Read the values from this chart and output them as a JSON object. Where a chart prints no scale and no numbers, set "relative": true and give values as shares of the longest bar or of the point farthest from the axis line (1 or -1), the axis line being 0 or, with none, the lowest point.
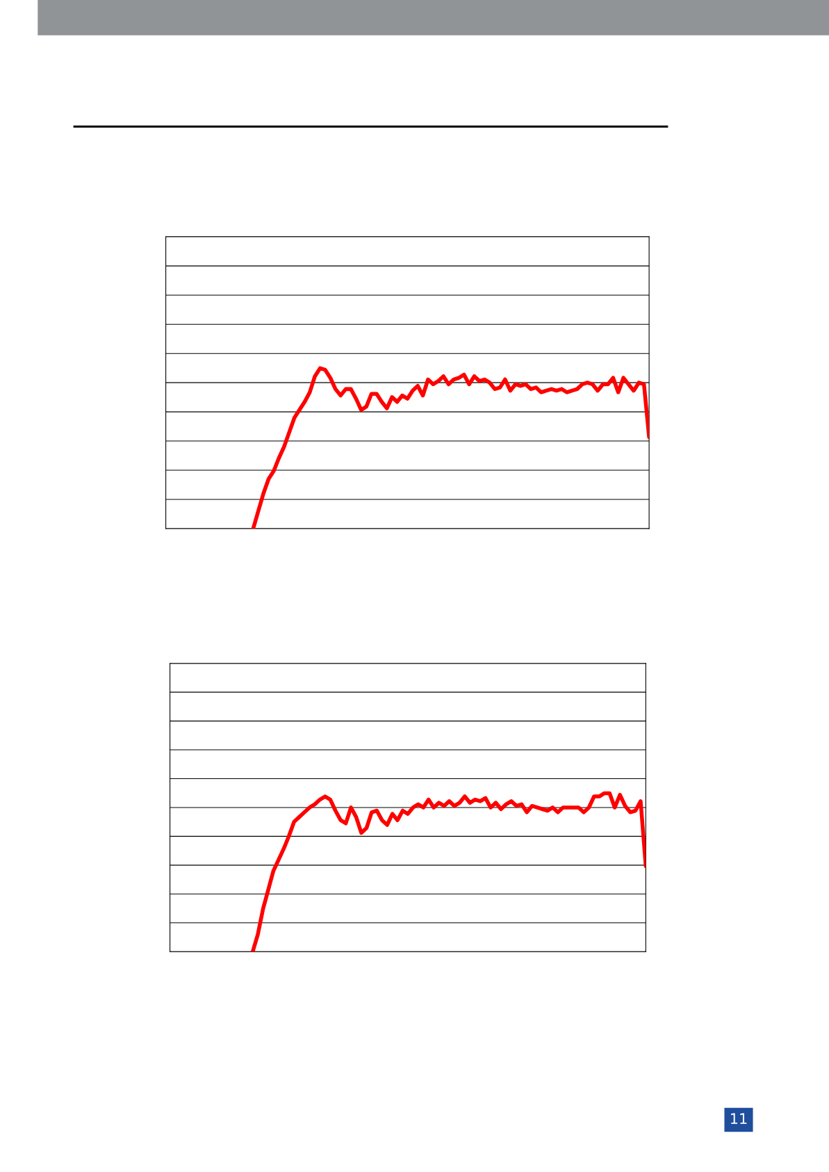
{
  "chart_data": [
    {
      "type": "line",
      "relative": true,
      "grid": "y",
      "color": "#ff0000",
      "categories": [
        null,
        null,
        null,
        null,
        null,
        null,
        null,
        null,
        null,
        null,
        null,
        null,
        null,
        null,
        null,
        null,
        null,
        null,
        null,
        null,
        null,
        null,
        null,
        null,
        null,
        null,
        null,
        null,
        null,
        null,
        null,
        null,
        null,
        null,
        null,
        null,
        null,
        null,
        null,
        null,
        null,
        null,
        null,
        null,
        null,
        null,
        null,
        null,
        null,
        null,
        null,
        null,
        null,
        null,
        null,
        null,
        null,
        null,
        null,
        null,
        null,
        null,
        null,
        null,
        null,
        null,
        null,
        null,
        null,
        null,
        null,
        null,
        null,
        null,
        null,
        null,
        null,
        null,
        null,
        null,
        null,
        null,
        null,
        null,
        null,
        null,
        null,
        null,
        null,
        null,
        null,
        null,
        null,
        null,
        null
      ],
      "values": [
        null,
        null,
        null,
        null,
        null,
        null,
        null,
        null,
        null,
        null,
        null,
        null,
        null,
        null,
        null,
        null,
        null,
        0,
        0.11,
        0.22,
        0.31,
        0.36,
        0.44,
        0.51,
        0.6,
        0.69,
        0.74,
        0.79,
        0.85,
        0.95,
        1,
        0.99,
        0.94,
        0.87,
        0.83,
        0.87,
        0.87,
        0.81,
        0.74,
        0.76,
        0.84,
        0.84,
        0.79,
        0.75,
        0.82,
        0.79,
        0.83,
        0.81,
        0.86,
        0.89,
        0.83,
        0.93,
        0.9,
        0.92,
        0.95,
        0.9,
        0.93,
        0.94,
        0.96,
        0.9,
        0.95,
        0.92,
        0.93,
        0.91,
        0.87,
        0.88,
        0.93,
        0.86,
        0.9,
        0.89,
        0.9,
        0.87,
        0.88,
        0.85,
        0.86,
        0.87,
        0.86,
        0.87,
        0.85,
        0.86,
        0.87,
        0.9,
        0.91,
        0.9,
        0.86,
        0.9,
        0.9,
        0.94,
        0.85,
        0.94,
        0.9,
        0.86,
        0.91,
        0.9,
        0.57
      ]
    },
    {
      "type": "line",
      "relative": true,
      "grid": "y",
      "color": "#ff0000",
      "categories": [
        null,
        null,
        null,
        null,
        null,
        null,
        null,
        null,
        null,
        null,
        null,
        null,
        null,
        null,
        null,
        null,
        null,
        null,
        null,
        null,
        null,
        null,
        null,
        null,
        null,
        null,
        null,
        null,
        null,
        null,
        null,
        null,
        null,
        null,
        null,
        null,
        null,
        null,
        null,
        null,
        null,
        null,
        null,
        null,
        null,
        null,
        null,
        null,
        null,
        null,
        null,
        null,
        null,
        null,
        null,
        null,
        null,
        null,
        null,
        null,
        null,
        null,
        null,
        null,
        null,
        null,
        null,
        null,
        null,
        null,
        null,
        null,
        null,
        null,
        null,
        null,
        null,
        null,
        null,
        null,
        null,
        null,
        null,
        null,
        null,
        null,
        null,
        null,
        null,
        null,
        null,
        null,
        null
      ],
      "values": [
        null,
        null,
        null,
        null,
        null,
        null,
        null,
        null,
        null,
        null,
        null,
        null,
        null,
        null,
        null,
        null,
        0,
        0.11,
        0.27,
        0.39,
        0.51,
        0.58,
        0.65,
        0.73,
        0.82,
        0.85,
        0.88,
        0.91,
        0.93,
        0.96,
        0.98,
        0.96,
        0.89,
        0.83,
        0.81,
        0.91,
        0.85,
        0.75,
        0.78,
        0.88,
        0.89,
        0.83,
        0.8,
        0.87,
        0.83,
        0.89,
        0.87,
        0.91,
        0.93,
        0.91,
        0.96,
        0.91,
        0.94,
        0.92,
        0.95,
        0.92,
        0.94,
        0.98,
        0.94,
        0.96,
        0.95,
        0.97,
        0.91,
        0.94,
        0.9,
        0.93,
        0.95,
        0.92,
        0.93,
        0.88,
        0.92,
        0.91,
        0.9,
        0.89,
        0.91,
        0.88,
        0.91,
        0.91,
        0.91,
        0.91,
        0.88,
        0.91,
        0.98,
        0.98,
        1,
        1,
        0.91,
        0.99,
        0.92,
        0.88,
        0.89,
        0.95,
        0.54
      ],
      "annotations": [
        "11"
      ]
    }
  ]
}
